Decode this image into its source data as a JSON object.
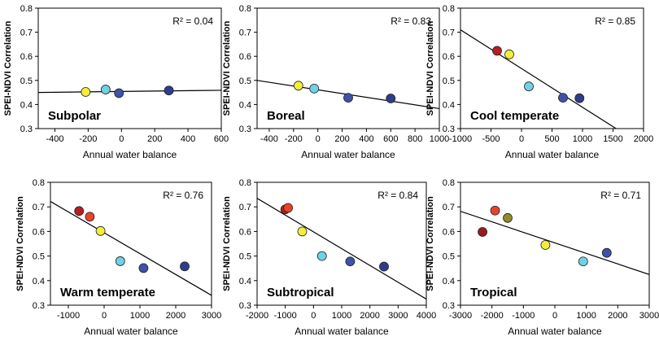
{
  "chart_data": [
    {
      "type": "scatter",
      "region": "Subpolar",
      "xlabel": "Annual water balance",
      "ylabel": "SPEI-NDVI Correlation",
      "xlim": [
        -500,
        600
      ],
      "ylim": [
        0.3,
        0.8
      ],
      "xticks": [
        "-400",
        "-200",
        "0",
        "200",
        "400",
        "600"
      ],
      "yticks": [
        "0.3",
        "0.4",
        "0.5",
        "0.6",
        "0.7",
        "0.8"
      ],
      "r2": "R² = 0.04",
      "points": [
        {
          "x": -215,
          "y": 0.452,
          "color": "#f4ee3a"
        },
        {
          "x": -95,
          "y": 0.462,
          "color": "#6fd2e6"
        },
        {
          "x": -15,
          "y": 0.447,
          "color": "#3d52a8"
        },
        {
          "x": 285,
          "y": 0.458,
          "color": "#2e3c8f"
        }
      ],
      "fit": {
        "x1": -500,
        "y1": 0.45,
        "x2": 600,
        "y2": 0.459
      }
    },
    {
      "type": "scatter",
      "region": "Boreal",
      "xlabel": "Annual water balance",
      "ylabel": "SPEI-NDVI Correlation",
      "xlim": [
        -500,
        1000
      ],
      "ylim": [
        0.3,
        0.8
      ],
      "xticks": [
        "-400",
        "-200",
        "0",
        "200",
        "400",
        "600",
        "800",
        "1000"
      ],
      "yticks": [
        "0.3",
        "0.4",
        "0.5",
        "0.6",
        "0.7",
        "0.8"
      ],
      "r2": "R² = 0.83",
      "points": [
        {
          "x": -160,
          "y": 0.478,
          "color": "#f4ee3a"
        },
        {
          "x": -30,
          "y": 0.466,
          "color": "#6fd2e6"
        },
        {
          "x": 250,
          "y": 0.428,
          "color": "#3d52a8"
        },
        {
          "x": 600,
          "y": 0.425,
          "color": "#2e3c8f"
        }
      ],
      "fit": {
        "x1": -500,
        "y1": 0.5,
        "x2": 1000,
        "y2": 0.383
      }
    },
    {
      "type": "scatter",
      "region": "Cool temperate",
      "xlabel": "Annual water balance",
      "ylabel": "SPEI-NDVI Correlation",
      "xlim": [
        -1000,
        2000
      ],
      "ylim": [
        0.3,
        0.8
      ],
      "xticks": [
        "-1000",
        "-500",
        "0",
        "500",
        "1000",
        "1500",
        "2000"
      ],
      "yticks": [
        "0.3",
        "0.4",
        "0.5",
        "0.6",
        "0.7",
        "0.8"
      ],
      "r2": "R² = 0.85",
      "points": [
        {
          "x": -400,
          "y": 0.623,
          "color": "#b81e1e"
        },
        {
          "x": -200,
          "y": 0.608,
          "color": "#f4ee3a"
        },
        {
          "x": 120,
          "y": 0.475,
          "color": "#6fd2e6"
        },
        {
          "x": 680,
          "y": 0.428,
          "color": "#3d52a8"
        },
        {
          "x": 950,
          "y": 0.426,
          "color": "#2e3c8f"
        }
      ],
      "fit": {
        "x1": -1000,
        "y1": 0.71,
        "x2": 1550,
        "y2": 0.3
      }
    },
    {
      "type": "scatter",
      "region": "Warm temperate",
      "xlabel": "Annual water balance",
      "ylabel": "SPEI-NDVI Correlation",
      "xlim": [
        -1500,
        3000
      ],
      "ylim": [
        0.3,
        0.8
      ],
      "xticks": [
        "-1000",
        "0",
        "1000",
        "2000",
        "3000"
      ],
      "yticks": [
        "0.3",
        "0.4",
        "0.5",
        "0.6",
        "0.7",
        "0.8"
      ],
      "r2": "R² = 0.76",
      "points": [
        {
          "x": -700,
          "y": 0.683,
          "color": "#b81e1e"
        },
        {
          "x": -400,
          "y": 0.66,
          "color": "#e8432a"
        },
        {
          "x": -100,
          "y": 0.602,
          "color": "#f4ee3a"
        },
        {
          "x": 450,
          "y": 0.479,
          "color": "#6fd2e6"
        },
        {
          "x": 1100,
          "y": 0.451,
          "color": "#3d52a8"
        },
        {
          "x": 2250,
          "y": 0.458,
          "color": "#2e3c8f"
        }
      ],
      "fit": {
        "x1": -1500,
        "y1": 0.722,
        "x2": 3000,
        "y2": 0.34
      }
    },
    {
      "type": "scatter",
      "region": "Subtropical",
      "xlabel": "Annual water balance",
      "ylabel": "SPEI-NDVI Correlation",
      "xlim": [
        -2000,
        4000
      ],
      "ylim": [
        0.3,
        0.8
      ],
      "xticks": [
        "-2000",
        "-1000",
        "0",
        "1000",
        "2000",
        "3000",
        "4000"
      ],
      "yticks": [
        "0.3",
        "0.4",
        "0.5",
        "0.6",
        "0.7",
        "0.8"
      ],
      "r2": "R² = 0.84",
      "points": [
        {
          "x": -1000,
          "y": 0.69,
          "color": "#b81e1e"
        },
        {
          "x": -900,
          "y": 0.696,
          "color": "#e8432a"
        },
        {
          "x": -400,
          "y": 0.6,
          "color": "#f4ee3a"
        },
        {
          "x": 300,
          "y": 0.5,
          "color": "#6fd2e6"
        },
        {
          "x": 1300,
          "y": 0.478,
          "color": "#3d52a8"
        },
        {
          "x": 2500,
          "y": 0.457,
          "color": "#2e3c8f"
        }
      ],
      "fit": {
        "x1": -2000,
        "y1": 0.735,
        "x2": 4000,
        "y2": 0.325
      }
    },
    {
      "type": "scatter",
      "region": "Tropical",
      "xlabel": "Annual water balance",
      "ylabel": "SPEI-NDVI Correlation",
      "xlim": [
        -3000,
        3000
      ],
      "ylim": [
        0.3,
        0.8
      ],
      "xticks": [
        "-3000",
        "-2000",
        "-1000",
        "0",
        "1000",
        "2000",
        "3000"
      ],
      "yticks": [
        "0.3",
        "0.4",
        "0.5",
        "0.6",
        "0.7",
        "0.8"
      ],
      "r2": "R² = 0.71",
      "points": [
        {
          "x": -2300,
          "y": 0.598,
          "color": "#9a1b1b"
        },
        {
          "x": -1900,
          "y": 0.685,
          "color": "#e8432a"
        },
        {
          "x": -1500,
          "y": 0.655,
          "color": "#8f8a2a"
        },
        {
          "x": -300,
          "y": 0.545,
          "color": "#f4ee3a"
        },
        {
          "x": 900,
          "y": 0.478,
          "color": "#6fd2e6"
        },
        {
          "x": 1650,
          "y": 0.513,
          "color": "#3d52a8"
        }
      ],
      "fit": {
        "x1": -3000,
        "y1": 0.682,
        "x2": 3000,
        "y2": 0.425
      }
    }
  ]
}
